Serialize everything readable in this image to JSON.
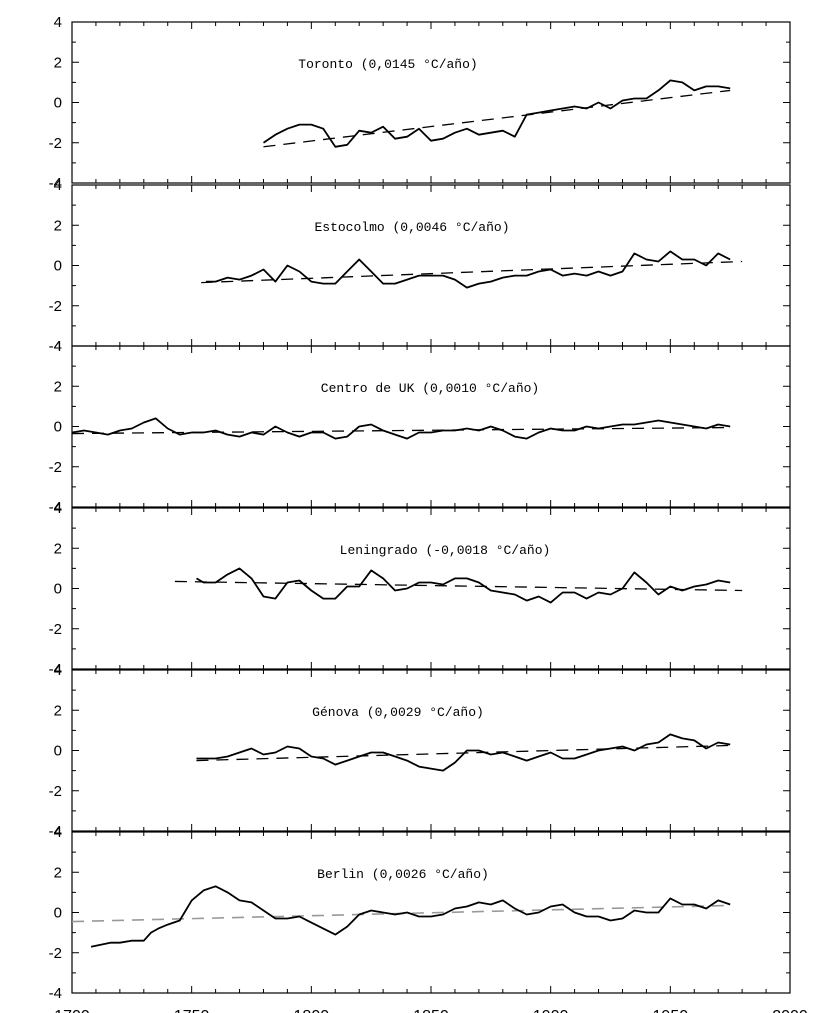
{
  "chart_data": [
    {
      "type": "line",
      "title": "Toronto   (0,0145 °C/año)",
      "xlim": [
        1700,
        2000
      ],
      "ylim": [
        -4,
        4
      ],
      "yticks": [
        "4",
        "2",
        "0",
        "-2",
        "-4"
      ],
      "series": [
        {
          "x": [
            1780,
            1785,
            1790,
            1795,
            1800,
            1805,
            1810,
            1815,
            1820,
            1825,
            1830,
            1835,
            1840,
            1845,
            1850,
            1855,
            1860,
            1865,
            1870,
            1875,
            1880,
            1885,
            1890,
            1895,
            1900,
            1905,
            1910,
            1915,
            1920,
            1925,
            1930,
            1935,
            1940,
            1945,
            1950,
            1955,
            1960,
            1965,
            1970,
            1975
          ],
          "y": [
            -2.0,
            -1.6,
            -1.3,
            -1.1,
            -1.1,
            -1.3,
            -2.2,
            -2.1,
            -1.4,
            -1.5,
            -1.2,
            -1.8,
            -1.7,
            -1.3,
            -1.9,
            -1.8,
            -1.5,
            -1.3,
            -1.6,
            -1.5,
            -1.4,
            -1.7,
            -0.6,
            -0.5,
            -0.4,
            -0.3,
            -0.2,
            -0.3,
            0.0,
            -0.3,
            0.1,
            0.2,
            0.2,
            0.6,
            1.1,
            1.0,
            0.6,
            0.8,
            0.8,
            0.7
          ]
        }
      ],
      "trend": {
        "x": [
          1780,
          1975
        ],
        "y": [
          -2.2,
          0.6
        ],
        "style": "dashed"
      }
    },
    {
      "type": "line",
      "title": "Estocolmo  (0,0046 °C/año)",
      "xlim": [
        1700,
        2000
      ],
      "ylim": [
        -4,
        4
      ],
      "yticks": [
        "4",
        "2",
        "0",
        "-2",
        "-4"
      ],
      "series": [
        {
          "x": [
            1756,
            1760,
            1765,
            1770,
            1775,
            1780,
            1785,
            1790,
            1795,
            1800,
            1805,
            1810,
            1815,
            1820,
            1825,
            1830,
            1835,
            1840,
            1845,
            1850,
            1855,
            1860,
            1865,
            1870,
            1875,
            1880,
            1885,
            1890,
            1895,
            1900,
            1905,
            1910,
            1915,
            1920,
            1925,
            1930,
            1935,
            1940,
            1945,
            1950,
            1955,
            1960,
            1965,
            1970,
            1975
          ],
          "y": [
            -0.8,
            -0.8,
            -0.6,
            -0.7,
            -0.5,
            -0.2,
            -0.8,
            0.0,
            -0.3,
            -0.8,
            -0.9,
            -0.9,
            -0.3,
            0.3,
            -0.3,
            -0.9,
            -0.9,
            -0.7,
            -0.5,
            -0.5,
            -0.5,
            -0.7,
            -1.1,
            -0.9,
            -0.8,
            -0.6,
            -0.5,
            -0.5,
            -0.3,
            -0.2,
            -0.5,
            -0.4,
            -0.5,
            -0.3,
            -0.5,
            -0.3,
            0.6,
            0.3,
            0.2,
            0.7,
            0.3,
            0.3,
            0.0,
            0.6,
            0.3
          ]
        }
      ],
      "trend": {
        "x": [
          1754,
          1980
        ],
        "y": [
          -0.85,
          0.2
        ],
        "style": "dashed"
      }
    },
    {
      "type": "line",
      "title": "Centro de UK  (0,0010 °C/año)",
      "xlim": [
        1700,
        2000
      ],
      "ylim": [
        -4,
        4
      ],
      "yticks": [
        "4",
        "2",
        "0",
        "-2",
        "-4"
      ],
      "series": [
        {
          "x": [
            1700,
            1705,
            1710,
            1715,
            1720,
            1725,
            1730,
            1735,
            1740,
            1745,
            1750,
            1755,
            1760,
            1765,
            1770,
            1775,
            1780,
            1785,
            1790,
            1795,
            1800,
            1805,
            1810,
            1815,
            1820,
            1825,
            1830,
            1835,
            1840,
            1845,
            1850,
            1855,
            1860,
            1865,
            1870,
            1875,
            1880,
            1885,
            1890,
            1895,
            1900,
            1905,
            1910,
            1915,
            1920,
            1925,
            1930,
            1935,
            1940,
            1945,
            1950,
            1955,
            1960,
            1965,
            1970,
            1975
          ],
          "y": [
            -0.3,
            -0.2,
            -0.3,
            -0.4,
            -0.2,
            -0.1,
            0.2,
            0.4,
            -0.1,
            -0.4,
            -0.3,
            -0.3,
            -0.2,
            -0.4,
            -0.5,
            -0.3,
            -0.4,
            0.0,
            -0.3,
            -0.5,
            -0.3,
            -0.3,
            -0.6,
            -0.5,
            0.0,
            0.1,
            -0.2,
            -0.4,
            -0.6,
            -0.3,
            -0.3,
            -0.2,
            -0.2,
            -0.1,
            -0.2,
            0.0,
            -0.2,
            -0.5,
            -0.6,
            -0.3,
            -0.1,
            -0.2,
            -0.2,
            0.0,
            -0.1,
            0.0,
            0.1,
            0.1,
            0.2,
            0.3,
            0.2,
            0.1,
            0.0,
            -0.1,
            0.1,
            0.0
          ]
        }
      ],
      "trend": {
        "x": [
          1700,
          1975
        ],
        "y": [
          -0.35,
          -0.05
        ],
        "style": "dashed"
      }
    },
    {
      "type": "line",
      "title": "Leningrado  (-0,0018 °C/año)",
      "xlim": [
        1700,
        2000
      ],
      "ylim": [
        -4,
        4
      ],
      "yticks": [
        "4",
        "2",
        "0",
        "-2",
        "-4"
      ],
      "series": [
        {
          "x": [
            1752,
            1755,
            1760,
            1765,
            1770,
            1775,
            1780,
            1785,
            1790,
            1795,
            1800,
            1805,
            1810,
            1815,
            1820,
            1825,
            1830,
            1835,
            1840,
            1845,
            1850,
            1855,
            1860,
            1865,
            1870,
            1875,
            1880,
            1885,
            1890,
            1895,
            1900,
            1905,
            1910,
            1915,
            1920,
            1925,
            1930,
            1935,
            1940,
            1945,
            1950,
            1955,
            1960,
            1965,
            1970,
            1975
          ],
          "y": [
            0.5,
            0.3,
            0.3,
            0.7,
            1.0,
            0.5,
            -0.4,
            -0.5,
            0.3,
            0.4,
            -0.1,
            -0.5,
            -0.5,
            0.1,
            0.1,
            0.9,
            0.5,
            -0.1,
            0.0,
            0.3,
            0.3,
            0.2,
            0.5,
            0.5,
            0.3,
            -0.1,
            -0.2,
            -0.3,
            -0.6,
            -0.4,
            -0.7,
            -0.2,
            -0.2,
            -0.5,
            -0.2,
            -0.3,
            0.0,
            0.8,
            0.3,
            -0.3,
            0.1,
            -0.1,
            0.1,
            0.2,
            0.4,
            0.3
          ]
        }
      ],
      "trend": {
        "x": [
          1743,
          1980
        ],
        "y": [
          0.35,
          -0.1
        ],
        "style": "dashed"
      }
    },
    {
      "type": "line",
      "title": "Génova  (0,0029 °C/año)",
      "xlim": [
        1700,
        2000
      ],
      "ylim": [
        -4,
        4
      ],
      "yticks": [
        "4",
        "2",
        "0",
        "-2",
        "-4"
      ],
      "series": [
        {
          "x": [
            1752,
            1755,
            1760,
            1765,
            1770,
            1775,
            1780,
            1785,
            1790,
            1795,
            1800,
            1805,
            1810,
            1815,
            1820,
            1825,
            1830,
            1835,
            1840,
            1845,
            1850,
            1855,
            1860,
            1865,
            1870,
            1875,
            1880,
            1885,
            1890,
            1895,
            1900,
            1905,
            1910,
            1915,
            1920,
            1925,
            1930,
            1935,
            1940,
            1945,
            1950,
            1955,
            1960,
            1965,
            1970,
            1975
          ],
          "y": [
            -0.4,
            -0.4,
            -0.4,
            -0.3,
            -0.1,
            0.1,
            -0.2,
            -0.1,
            0.2,
            0.1,
            -0.3,
            -0.4,
            -0.7,
            -0.5,
            -0.3,
            -0.1,
            -0.1,
            -0.3,
            -0.5,
            -0.8,
            -0.9,
            -1.0,
            -0.6,
            0.0,
            0.0,
            -0.2,
            -0.1,
            -0.3,
            -0.5,
            -0.3,
            -0.1,
            -0.4,
            -0.4,
            -0.2,
            0.0,
            0.1,
            0.2,
            0.0,
            0.3,
            0.4,
            0.8,
            0.6,
            0.5,
            0.1,
            0.4,
            0.3
          ]
        }
      ],
      "trend": {
        "x": [
          1752,
          1975
        ],
        "y": [
          -0.5,
          0.25
        ],
        "style": "dashed"
      }
    },
    {
      "type": "line",
      "title": "Berlin  (0,0026 °C/año)",
      "xlim": [
        1700,
        2000
      ],
      "ylim": [
        -4,
        4
      ],
      "yticks": [
        "4",
        "2",
        "0",
        "-2",
        "-4"
      ],
      "xticks": [
        "1700",
        "1750",
        "1800",
        "1850",
        "1900",
        "1950",
        "2000"
      ],
      "series": [
        {
          "x": [
            1708,
            1712,
            1716,
            1720,
            1725,
            1730,
            1733,
            1736,
            1740,
            1745,
            1750,
            1755,
            1760,
            1765,
            1770,
            1775,
            1780,
            1785,
            1790,
            1795,
            1800,
            1805,
            1810,
            1815,
            1820,
            1825,
            1830,
            1835,
            1840,
            1845,
            1850,
            1855,
            1860,
            1865,
            1870,
            1875,
            1880,
            1885,
            1890,
            1895,
            1900,
            1905,
            1910,
            1915,
            1920,
            1925,
            1930,
            1935,
            1940,
            1945,
            1950,
            1955,
            1960,
            1965,
            1970,
            1975
          ],
          "y": [
            -1.7,
            -1.6,
            -1.5,
            -1.5,
            -1.4,
            -1.4,
            -1.0,
            -0.8,
            -0.6,
            -0.4,
            0.6,
            1.1,
            1.3,
            1.0,
            0.6,
            0.5,
            0.1,
            -0.3,
            -0.3,
            -0.2,
            -0.5,
            -0.8,
            -1.1,
            -0.7,
            -0.1,
            0.1,
            0.0,
            -0.1,
            0.0,
            -0.2,
            -0.2,
            -0.1,
            0.2,
            0.3,
            0.5,
            0.4,
            0.6,
            0.2,
            -0.1,
            0.0,
            0.3,
            0.4,
            0.0,
            -0.2,
            -0.2,
            -0.4,
            -0.3,
            0.1,
            0.0,
            0.0,
            0.7,
            0.4,
            0.4,
            0.2,
            0.6,
            0.4
          ]
        }
      ],
      "trend": {
        "x": [
          1700,
          1975
        ],
        "y": [
          -0.45,
          0.35
        ],
        "style": "dashed",
        "color": "#999999"
      }
    }
  ]
}
